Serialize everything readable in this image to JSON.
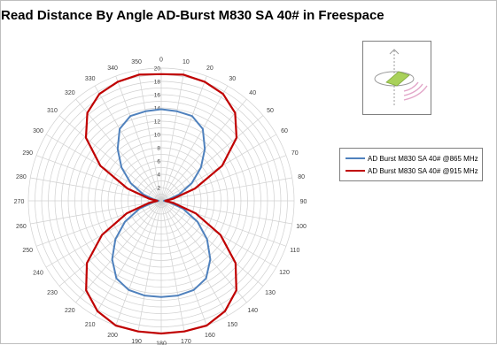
{
  "chart_data": {
    "type": "polar-line",
    "title": "Read Distance By Angle AD-Burst M830 SA 40# in Freespace",
    "angle_labels": [
      "0",
      "10",
      "20",
      "30",
      "40",
      "50",
      "60",
      "70",
      "80",
      "90",
      "100",
      "110",
      "120",
      "130",
      "140",
      "150",
      "160",
      "170",
      "180",
      "190",
      "200",
      "210",
      "220",
      "230",
      "240",
      "250",
      "260",
      "270",
      "280",
      "290",
      "300",
      "310",
      "320",
      "330",
      "340",
      "350"
    ],
    "radial_labels": [
      "2",
      "4",
      "6",
      "8",
      "10",
      "12",
      "14",
      "16",
      "18",
      "20"
    ],
    "rlim": [
      0,
      20
    ],
    "legend_position": "right",
    "series": [
      {
        "name": "AD Burst M830 SA 40# @865 MHz",
        "color": "#4f81bd",
        "angles": [
          0,
          10,
          20,
          30,
          40,
          50,
          60,
          70,
          80,
          90,
          100,
          110,
          120,
          130,
          140,
          150,
          160,
          170,
          180,
          190,
          200,
          210,
          220,
          230,
          240,
          250,
          260,
          270,
          280,
          290,
          300,
          310,
          320,
          330,
          340,
          350
        ],
        "values": [
          13.8,
          13.7,
          13.6,
          12.5,
          10.2,
          7.8,
          5.3,
          2.9,
          1.2,
          0.4,
          1.3,
          3.5,
          6.3,
          9.0,
          11.5,
          13.5,
          14.3,
          14.5,
          14.5,
          14.5,
          14.3,
          13.5,
          11.5,
          9.0,
          6.3,
          3.5,
          1.3,
          0.4,
          1.2,
          2.9,
          5.3,
          7.8,
          10.2,
          12.5,
          13.6,
          13.7
        ]
      },
      {
        "name": "AD Burst M830 SA 40# @915 MHz",
        "color": "#c00000",
        "angles": [
          0,
          10,
          20,
          30,
          40,
          50,
          60,
          70,
          80,
          90,
          100,
          110,
          120,
          130,
          140,
          150,
          160,
          170,
          180,
          190,
          200,
          210,
          220,
          230,
          240,
          250,
          260,
          270,
          280,
          290,
          300,
          310,
          320,
          330,
          340,
          350
        ],
        "values": [
          19.1,
          19.3,
          19.1,
          18.6,
          17.3,
          14.8,
          10.6,
          5.4,
          1.8,
          0.6,
          1.9,
          5.5,
          10.3,
          14.6,
          17.6,
          19.2,
          20.0,
          20.0,
          20.0,
          20.0,
          20.0,
          19.2,
          17.6,
          14.6,
          10.3,
          5.5,
          1.9,
          0.6,
          1.8,
          5.4,
          10.6,
          14.8,
          17.3,
          18.6,
          19.1,
          19.3
        ]
      }
    ]
  },
  "colors": {
    "grid": "#d0d0d0",
    "axis_text": "#404040"
  }
}
